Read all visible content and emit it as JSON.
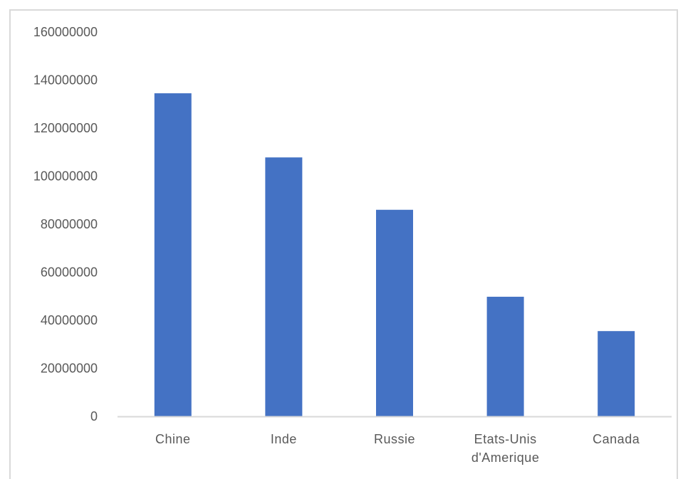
{
  "chart_data": {
    "type": "bar",
    "categories": [
      "Chine",
      "Inde",
      "Russie",
      "Etats-Unis d'Amerique",
      "Canada"
    ],
    "values": [
      134500000,
      107800000,
      86000000,
      49800000,
      35500000
    ],
    "yticks": [
      "0",
      "20000000",
      "40000000",
      "60000000",
      "80000000",
      "100000000",
      "120000000",
      "140000000",
      "160000000"
    ],
    "ylim": [
      0,
      160000000
    ],
    "title": "",
    "xlabel": "",
    "ylabel": "",
    "grid": false,
    "colors": {
      "bar": "#4472c4",
      "axis": "#d9d9d9",
      "text": "#595959"
    }
  }
}
